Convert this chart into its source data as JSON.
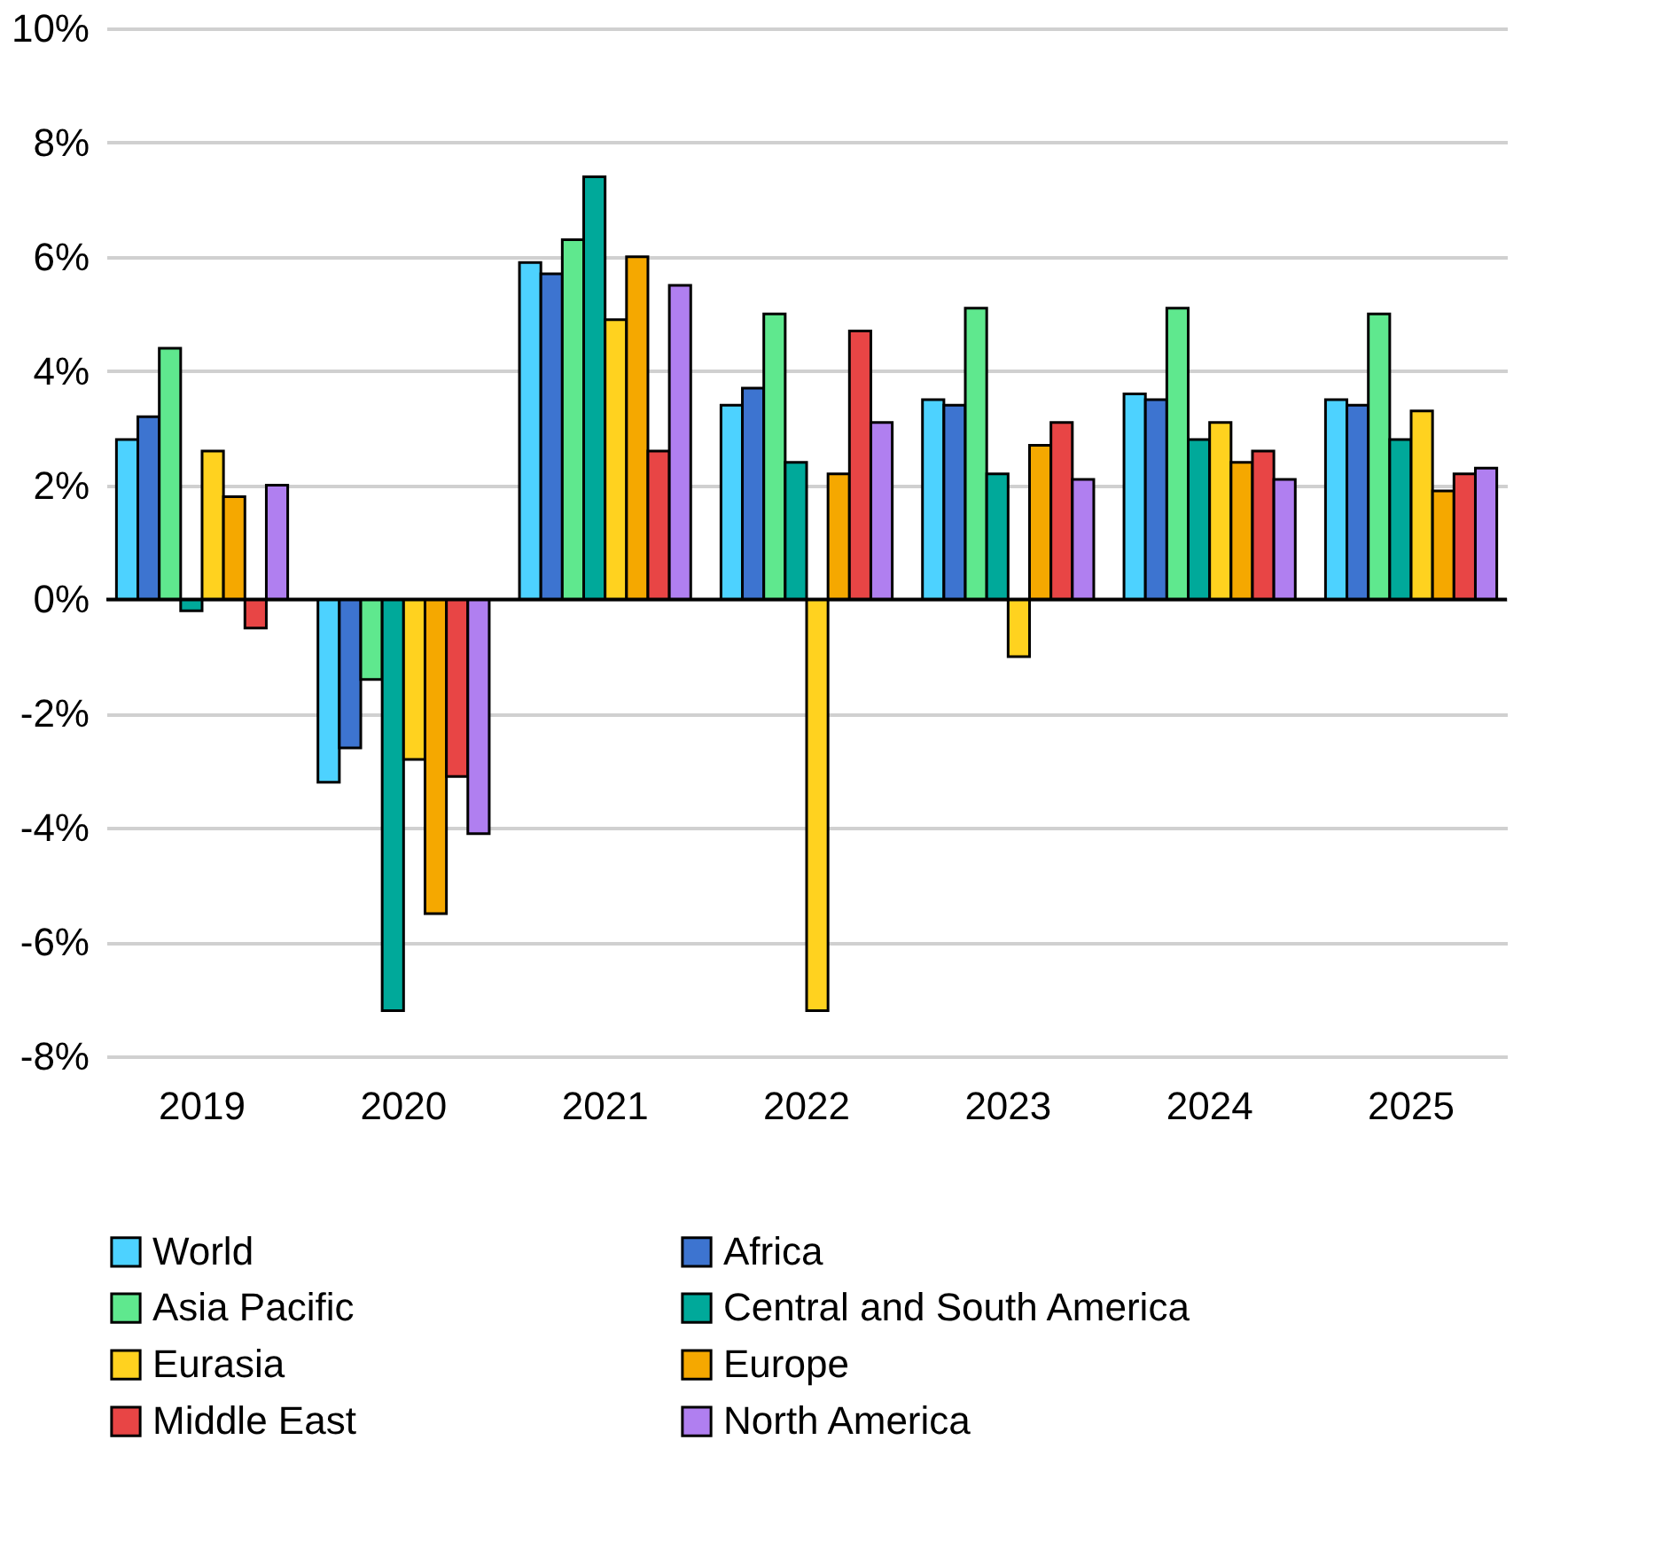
{
  "chart_data": {
    "type": "bar",
    "categories": [
      "2019",
      "2020",
      "2021",
      "2022",
      "2023",
      "2024",
      "2025"
    ],
    "series": [
      {
        "name": "World",
        "color": "#4dd2ff",
        "values": [
          2.8,
          -3.2,
          5.9,
          3.4,
          3.5,
          3.6,
          3.5
        ]
      },
      {
        "name": "Africa",
        "color": "#3d74d0",
        "values": [
          3.2,
          -2.6,
          5.7,
          3.7,
          3.4,
          3.5,
          3.4
        ]
      },
      {
        "name": "Asia Pacific",
        "color": "#5fe88e",
        "values": [
          4.4,
          -1.4,
          6.3,
          5.0,
          5.1,
          5.1,
          5.0
        ]
      },
      {
        "name": "Central and South America",
        "color": "#00a99a",
        "values": [
          -0.2,
          -7.2,
          7.4,
          2.4,
          2.2,
          2.8,
          2.8
        ]
      },
      {
        "name": "Eurasia",
        "color": "#ffd21f",
        "values": [
          2.6,
          -2.8,
          4.9,
          -7.2,
          -1.0,
          3.1,
          3.3
        ]
      },
      {
        "name": "Europe",
        "color": "#f5a800",
        "values": [
          1.8,
          -5.5,
          6.0,
          2.2,
          2.7,
          2.4,
          1.9
        ]
      },
      {
        "name": "Middle East",
        "color": "#e84545",
        "values": [
          -0.5,
          -3.1,
          2.6,
          4.7,
          3.1,
          2.6,
          2.2
        ]
      },
      {
        "name": "North America",
        "color": "#b07ff0",
        "values": [
          2.0,
          -4.1,
          5.5,
          3.1,
          2.1,
          2.1,
          2.3
        ]
      }
    ],
    "ylim": [
      -8,
      10
    ],
    "yticks": [
      {
        "value": -8,
        "label": "-8%"
      },
      {
        "value": -6,
        "label": "-6%"
      },
      {
        "value": -4,
        "label": "-4%"
      },
      {
        "value": -2,
        "label": "-2%"
      },
      {
        "value": 0,
        "label": "0%"
      },
      {
        "value": 2,
        "label": "2%"
      },
      {
        "value": 4,
        "label": "4%"
      },
      {
        "value": 6,
        "label": "6%"
      },
      {
        "value": 8,
        "label": "8%"
      },
      {
        "value": 10,
        "label": "10%"
      }
    ],
    "grid": "y",
    "legend": "bottom",
    "ref_lines": [
      {
        "axis": "y",
        "value": 0,
        "color": "#000000"
      }
    ]
  }
}
